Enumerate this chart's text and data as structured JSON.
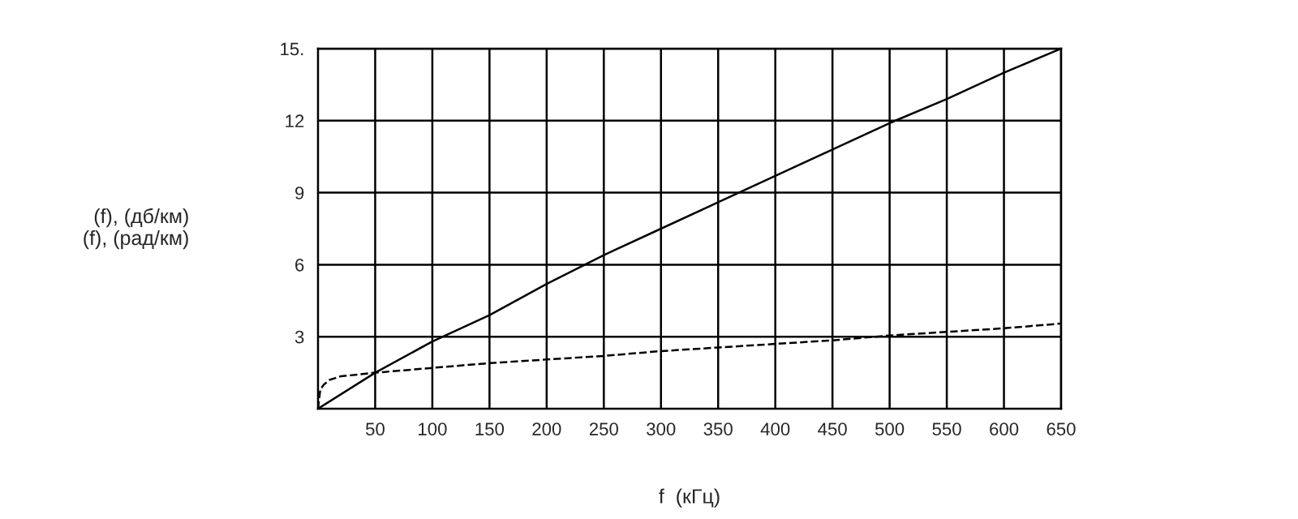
{
  "chart_data": {
    "type": "line",
    "xlabel": "f  (кГц)",
    "ylabel": "(f), (дб/км)\n(f), (рад/км)",
    "xlim": [
      0,
      650
    ],
    "ylim": [
      0,
      15
    ],
    "xticks": [
      50,
      100,
      150,
      200,
      250,
      300,
      350,
      400,
      450,
      500,
      550,
      600,
      650
    ],
    "yticks": [
      3,
      6,
      9,
      12,
      {
        "value": 15,
        "label": "15."
      }
    ],
    "grid": true,
    "marker": "none",
    "series": [
      {
        "color": "#000000",
        "line_style": "solid",
        "x": [
          0,
          50,
          100,
          150,
          200,
          250,
          300,
          350,
          400,
          450,
          500,
          550,
          600,
          650
        ],
        "values": [
          0,
          1.5,
          2.8,
          3.9,
          5.2,
          6.4,
          7.5,
          8.6,
          9.7,
          10.8,
          11.9,
          12.9,
          14.0,
          15.0
        ]
      },
      {
        "color": "#000000",
        "line_style": "dashed",
        "x": [
          0,
          2,
          5,
          10,
          20,
          50,
          100,
          150,
          200,
          250,
          300,
          350,
          400,
          450,
          500,
          550,
          600,
          650
        ],
        "values": [
          0,
          0.8,
          1.0,
          1.2,
          1.35,
          1.5,
          1.7,
          1.9,
          2.05,
          2.2,
          2.4,
          2.55,
          2.7,
          2.85,
          3.05,
          3.2,
          3.35,
          3.55
        ]
      }
    ]
  }
}
